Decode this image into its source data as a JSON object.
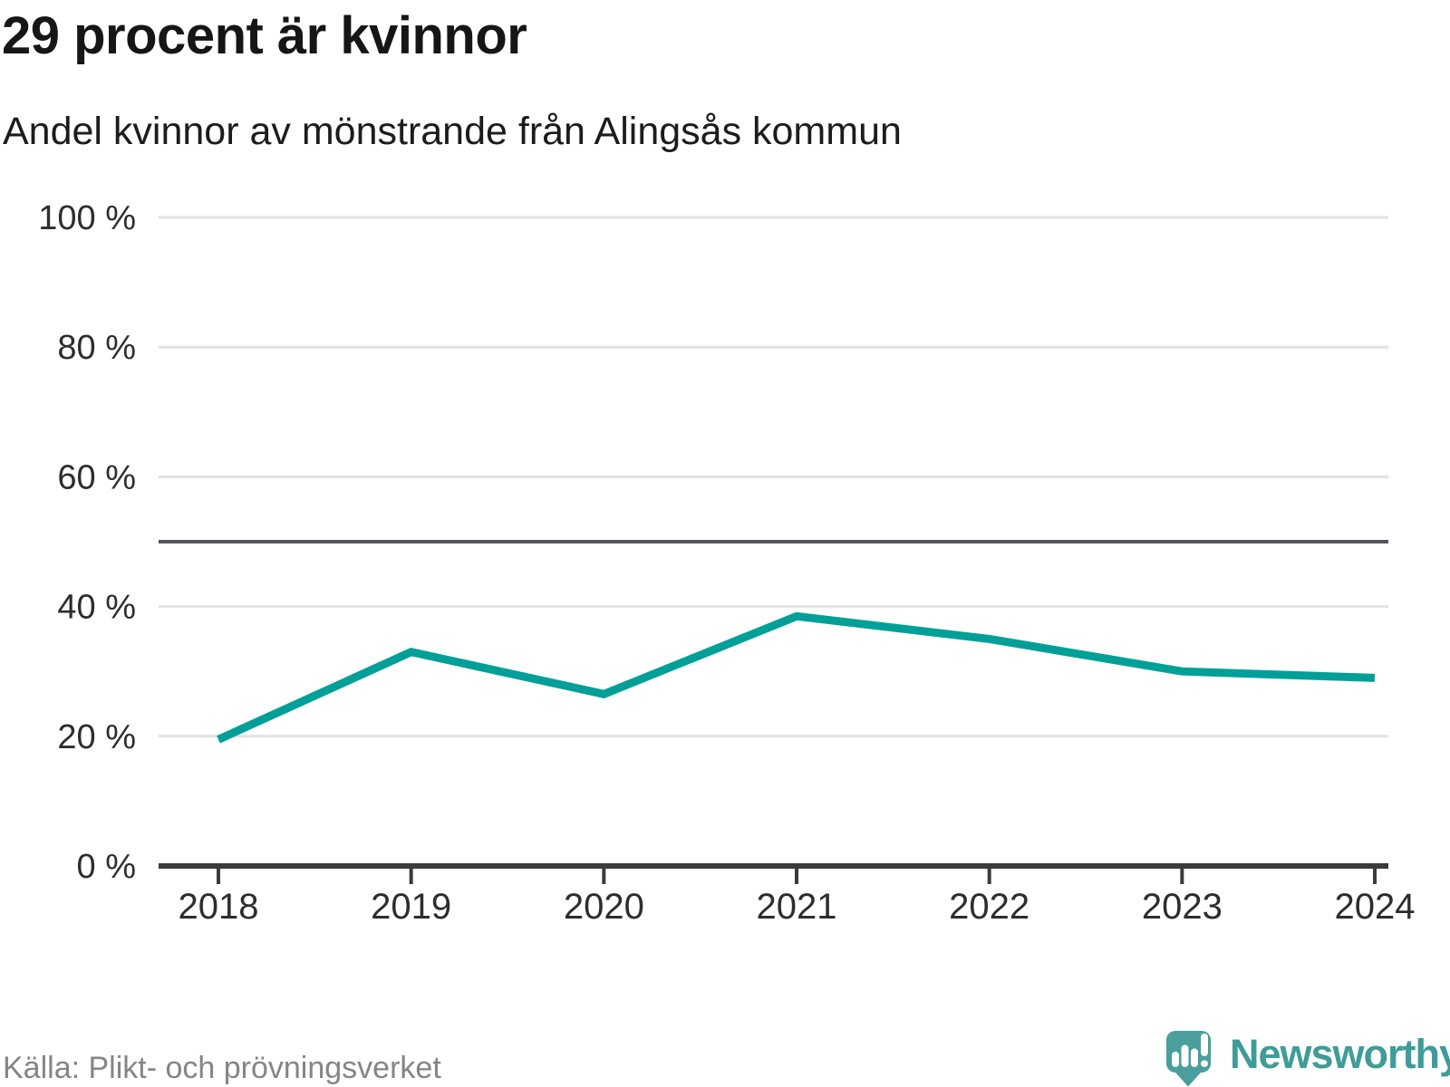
{
  "header": {
    "title": "29 procent är kvinnor",
    "subtitle": "Andel kvinnor av mönstrande från Alingsås kommun"
  },
  "footer": {
    "source": "Källa: Plikt- och prövningsverket",
    "brand": "Newsworthy",
    "brand_icon": "newsworthy-pin-chart-icon"
  },
  "colors": {
    "series_line": "#00a098",
    "reference_line": "#55555e",
    "gridline": "#e2e2e2",
    "axis": "#3b3b3b",
    "tick_label": "#2d2d2d",
    "title_text": "#161616",
    "source_text": "#858585",
    "brand_teal_text": "#3f9c98",
    "brand_teal_fill": "#4a9e9b"
  },
  "chart_data": {
    "type": "line",
    "title": "29 procent är kvinnor",
    "subtitle": "Andel kvinnor av mönstrande från Alingsås kommun",
    "x": [
      "2018",
      "2019",
      "2020",
      "2021",
      "2022",
      "2023",
      "2024"
    ],
    "series": [
      {
        "name": "Andel kvinnor av mönstrande",
        "values": [
          19.5,
          33,
          26.5,
          38.5,
          35,
          30,
          29
        ]
      }
    ],
    "unit": "%",
    "ylim": [
      0,
      100
    ],
    "yticks": [
      0,
      20,
      40,
      60,
      80,
      100
    ],
    "ytick_suffix": " %",
    "reference_line": 50,
    "grid": "horizontal",
    "legend": "none",
    "xlabel": "",
    "ylabel": ""
  }
}
